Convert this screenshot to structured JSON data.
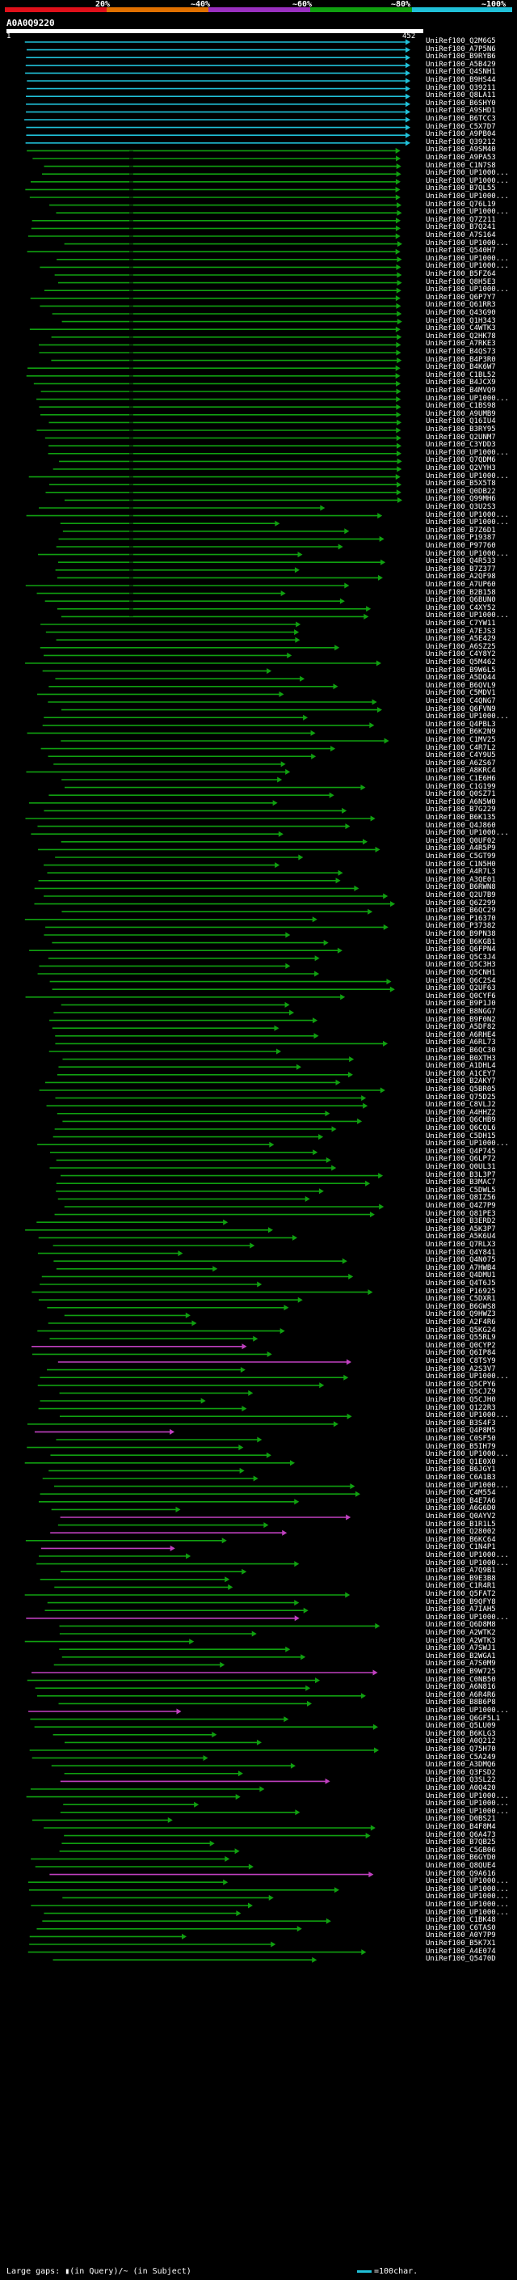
{
  "scale": {
    "labels": [
      "20%",
      "~40%",
      "~60%",
      "~80%",
      "~100%"
    ],
    "colors": [
      "#e0101a",
      "#e07000",
      "#9a30c0",
      "#10a010",
      "#20c0d8"
    ]
  },
  "query": {
    "name": "A0A0Q9220",
    "start": "1",
    "end": "452"
  },
  "legend": {
    "text": "Large gaps: ▮(in Query)/~ (in Subject)",
    "right": "=100char."
  },
  "hits": {
    "names": [
      "UniRef100_Q2M6G5",
      "UniRef100_A7P5N6",
      "UniRef100_B9RYB6",
      "UniRef100_A5B429",
      "UniRef100_Q4SNH1",
      "UniRef100_B9HS44",
      "UniRef100_Q39211",
      "UniRef100_Q8LA11",
      "UniRef100_B6SHY0",
      "UniRef100_A9SHD1",
      "UniRef100_B6TCC3",
      "UniRef100_C5X7D7",
      "UniRef100_A9PB04",
      "UniRef100_Q39212",
      "UniRef100_A9SM40",
      "UniRef100_A9PA53",
      "UniRef100_C1N7S8",
      "UniRef100_UP1000...",
      "UniRef100_UP1000...",
      "UniRef100_B7QL55",
      "UniRef100_UP1000...",
      "UniRef100_Q76L19",
      "UniRef100_UP1000...",
      "UniRef100_Q7Z211",
      "UniRef100_B7Q241",
      "UniRef100_A7S164",
      "UniRef100_UP1000...",
      "UniRef100_Q540H7",
      "UniRef100_UP1000...",
      "UniRef100_UP1000...",
      "UniRef100_B5FZ64",
      "UniRef100_Q8H5E3",
      "UniRef100_UP1000...",
      "UniRef100_Q6P7Y7",
      "UniRef100_Q61RR3",
      "UniRef100_Q43G90",
      "UniRef100_Q1H343",
      "UniRef100_C4WTK3",
      "UniRef100_Q2HK78",
      "UniRef100_A7RKE3",
      "UniRef100_B4QS73",
      "UniRef100_B4P3R0",
      "UniRef100_B4K6W7",
      "UniRef100_C1BL52",
      "UniRef100_B4JCX9",
      "UniRef100_B4MVQ9",
      "UniRef100_UP1000...",
      "UniRef100_C1BS98",
      "UniRef100_A9UMB9",
      "UniRef100_Q16IU4",
      "UniRef100_B3RY95",
      "UniRef100_Q2UNM7",
      "UniRef100_C3YDD3",
      "UniRef100_UP1000...",
      "UniRef100_Q7QDM6",
      "UniRef100_Q2VYH3",
      "UniRef100_UP1000...",
      "UniRef100_B5X5T8",
      "UniRef100_Q0DB22",
      "UniRef100_Q99MH6",
      "UniRef100_Q3U2S3",
      "UniRef100_UP1000...",
      "UniRef100_UP1000...",
      "UniRef100_B7Z6D1",
      "UniRef100_P19387",
      "UniRef100_P97760",
      "UniRef100_UP1000...",
      "UniRef100_Q4R533",
      "UniRef100_B7Z377",
      "UniRef100_A2QF98",
      "UniRef100_A7UP60",
      "UniRef100_B2B158",
      "UniRef100_Q6BUN0",
      "UniRef100_C4XY52",
      "UniRef100_UP1000...",
      "UniRef100_C7YW11",
      "UniRef100_A7EJS3",
      "UniRef100_A5E429",
      "UniRef100_A6SZ25",
      "UniRef100_C4Y8Y2",
      "UniRef100_Q5M462",
      "UniRef100_B9W6L5",
      "UniRef100_A5DQ44",
      "UniRef100_B6QVL9",
      "UniRef100_C5MDV1",
      "UniRef100_C4QNG7",
      "UniRef100_Q6FVN9",
      "UniRef100_UP1000...",
      "UniRef100_Q4PBL3",
      "UniRef100_B6K2N9",
      "UniRef100_C1MV25",
      "UniRef100_C4R7L2",
      "UniRef100_C4Y9U5",
      "UniRef100_A6ZS67",
      "UniRef100_A8KRC4",
      "UniRef100_C1E6H6",
      "UniRef100_C1G199",
      "UniRef100_Q0SZ71",
      "UniRef100_A6N5W0",
      "UniRef100_B7G229",
      "UniRef100_B6K135",
      "UniRef100_Q4J860",
      "UniRef100_UP1000...",
      "UniRef100_Q0UF02",
      "UniRef100_A4R5P9",
      "UniRef100_C5GT99",
      "UniRef100_C1N5H0",
      "UniRef100_A4R7L3",
      "UniRef100_A3QE01",
      "UniRef100_B6RWN8",
      "UniRef100_Q2U7B9",
      "UniRef100_Q6Z299",
      "UniRef100_B6QC29",
      "UniRef100_P16370",
      "UniRef100_P37382",
      "UniRef100_B9PN38",
      "UniRef100_B6KGB1",
      "UniRef100_Q6FPN4",
      "UniRef100_Q5C3J4",
      "UniRef100_Q5C3H3",
      "UniRef100_Q5CNH1",
      "UniRef100_Q6C2S4",
      "UniRef100_Q2UF63",
      "UniRef100_Q0CYF6",
      "UniRef100_B9P1J0",
      "UniRef100_B8NGG7",
      "UniRef100_B9F0N2",
      "UniRef100_A5DF82",
      "UniRef100_A6RHE4",
      "UniRef100_A6RL73",
      "UniRef100_B6QC30",
      "UniRef100_B0XTH3",
      "UniRef100_A1DHL4",
      "UniRef100_A1CEY7",
      "UniRef100_B2AKY7",
      "UniRef100_Q5BR05",
      "UniRef100_Q75D25",
      "UniRef100_C8VLJ2",
      "UniRef100_A4HHZ2",
      "UniRef100_Q6CHB9",
      "UniRef100_Q6CQL6",
      "UniRef100_C5DH15",
      "UniRef100_UP1000...",
      "UniRef100_Q4P745",
      "UniRef100_Q6LP72",
      "UniRef100_Q0UL31",
      "UniRef100_B3L3P7",
      "UniRef100_B3MAC7",
      "UniRef100_C5DWL5",
      "UniRef100_Q8IZ56",
      "UniRef100_Q4Z7P9",
      "UniRef100_Q81PE3",
      "UniRef100_B3ERD2",
      "UniRef100_A5K3P7",
      "UniRef100_A5K6U4",
      "UniRef100_Q7RLX3",
      "UniRef100_Q4Y841",
      "UniRef100_Q4N075",
      "UniRef100_A7HWB4",
      "UniRef100_Q4DMU1",
      "UniRef100_Q4T6J5",
      "UniRef100_P16925",
      "UniRef100_C5DXR1",
      "UniRef100_B6GWS8",
      "UniRef100_Q9HWZ3",
      "UniRef100_A2F4R6",
      "UniRef100_Q5KG24",
      "UniRef100_Q55RL9",
      "UniRef100_Q0CYP2",
      "UniRef100_Q6IP84",
      "UniRef100_C8TSY9",
      "UniRef100_A2S3V7",
      "UniRef100_UP1000...",
      "UniRef100_Q5CPY6",
      "UniRef100_Q5CJZ9",
      "UniRef100_Q5CJH0",
      "UniRef100_Q122R3",
      "UniRef100_UP1000...",
      "UniRef100_B3S4F3",
      "UniRef100_Q4P8M5",
      "UniRef100_C0SF50",
      "UniRef100_B5IH79",
      "UniRef100_UP1000...",
      "UniRef100_Q1E0X0",
      "UniRef100_B6JGY1",
      "UniRef100_C6A1B3",
      "UniRef100_UP1000...",
      "UniRef100_C4M554",
      "UniRef100_B4E7A6",
      "UniRef100_A6G6D0",
      "UniRef100_Q0AYV2",
      "UniRef100_B1R1L5",
      "UniRef100_Q28002",
      "UniRef100_B6KC64",
      "UniRef100_C1N4P1",
      "UniRef100_UP1000...",
      "UniRef100_UP1000...",
      "UniRef100_A7Q9B1",
      "UniRef100_B9E3B8",
      "UniRef100_C1R4R1",
      "UniRef100_Q5FAT2",
      "UniRef100_B9QFY8",
      "UniRef100_A7IAH5",
      "UniRef100_UP1000...",
      "UniRef100_Q6D8M8",
      "UniRef100_A2WTK2",
      "UniRef100_A2WTK3",
      "UniRef100_A7SWJ1",
      "UniRef100_B2WGA1",
      "UniRef100_A7S0M9",
      "UniRef100_B9W725",
      "UniRef100_C0NB50",
      "UniRef100_A6N816",
      "UniRef100_A6R4R6",
      "UniRef100_B8B6P8",
      "UniRef100_UP1000...",
      "UniRef100_Q6GF5L1",
      "UniRef100_Q5LU09",
      "UniRef100_B6KLG3",
      "UniRef100_A0Q212",
      "UniRef100_Q75H70",
      "UniRef100_C5A249",
      "UniRef100_A3DMQ6",
      "UniRef100_Q3FSD2",
      "UniRef100_Q3SL22",
      "UniRef100_A0Q420",
      "UniRef100_UP1000...",
      "UniRef100_UP1000...",
      "UniRef100_UP1000...",
      "UniRef100_D0BS21",
      "UniRef100_B4F8M4",
      "UniRef100_Q6A473",
      "UniRef100_B7QB25",
      "UniRef100_C5GB06",
      "UniRef100_B6GYD0",
      "UniRef100_Q8QUE4",
      "UniRef100_Q9A616",
      "UniRef100_UP1000...",
      "UniRef100_UP1000...",
      "UniRef100_UP1000...",
      "UniRef100_UP1000...",
      "UniRef100_UP1000...",
      "UniRef100_C1BK48",
      "UniRef100_C6TAS0",
      "UniRef100_A0Y7P9",
      "UniRef100_B5K7X1",
      "UniRef100_A4E074",
      "UniRef100_Q5470D"
    ]
  }
}
